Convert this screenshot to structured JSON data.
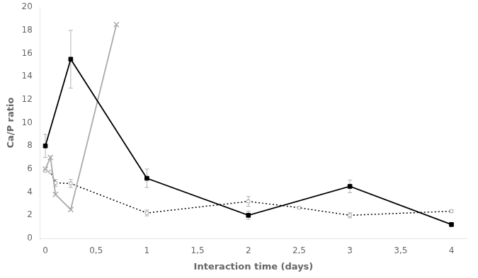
{
  "chart_data": {
    "type": "line",
    "xlabel": "Interaction time (days)",
    "ylabel": "Ca/P ratio",
    "xlim": [
      -0.05,
      4.15
    ],
    "ylim": [
      0,
      20
    ],
    "xticks": [
      0,
      {
        "value": 0.5,
        "label": "0,5"
      },
      1,
      {
        "value": 1.5,
        "label": "1,5"
      },
      2,
      {
        "value": 2.5,
        "label": "2,5"
      },
      3,
      {
        "value": 3.5,
        "label": "3,5"
      },
      4
    ],
    "yticks": [
      0,
      2,
      4,
      6,
      8,
      10,
      12,
      14,
      16,
      18,
      20
    ],
    "grid": false,
    "error_color": "#aaaaaa",
    "series": [
      {
        "color": "#000000",
        "marker": "square",
        "line_style": "solid",
        "x": [
          0,
          0.25,
          1,
          2,
          3,
          4
        ],
        "values": [
          8.0,
          15.5,
          5.2,
          2.0,
          4.5,
          1.2
        ],
        "yerr": [
          1.0,
          2.5,
          0.8,
          0.35,
          0.55,
          0.1
        ]
      },
      {
        "color": "#aaaaaa",
        "marker": "x",
        "line_style": "solid",
        "x": [
          0,
          0.05,
          0.1,
          0.25,
          0.7
        ],
        "values": [
          6.0,
          7.0,
          3.8,
          2.5,
          18.5
        ]
      },
      {
        "color": "#000000",
        "marker": "square_open",
        "marker_color": "#aaaaaa",
        "line_style": "dotted",
        "x": [
          0,
          0.05,
          0.1,
          0.25,
          1,
          2,
          2.5,
          3,
          4
        ],
        "values": [
          5.85,
          5.75,
          4.8,
          4.75,
          2.2,
          3.2,
          2.65,
          2.0,
          2.35
        ],
        "yerr": [
          0.0,
          0.0,
          0.3,
          0.35,
          0.25,
          0.42,
          0.0,
          0.22,
          0.12
        ]
      }
    ]
  }
}
